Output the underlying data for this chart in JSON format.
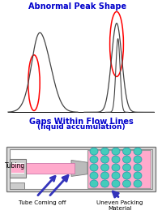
{
  "title_top": "Abnormal Peak Shape",
  "title_bottom": "Gaps Within Flow Lines",
  "subtitle_bottom": "(liquid accumulation)",
  "title_color": "#0000cc",
  "bg_color": "#ffffff",
  "label_tubing": "Tubing",
  "label_tube_off": "Tube Coming off",
  "label_uneven": "Uneven Packing\nMaterial",
  "arrow_color": "#3333bb",
  "tube_color": "#ffaacc",
  "column_bg": "#ffaacc",
  "bead_color": "#44ccbb",
  "bead_edge": "#2299aa",
  "gray_dark": "#888888",
  "gray_light": "#cccccc",
  "gray_mid": "#aaaaaa"
}
